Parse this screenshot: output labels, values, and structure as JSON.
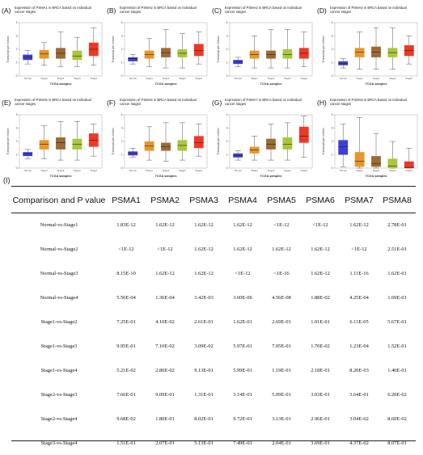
{
  "figure": {
    "panels": [
      {
        "label": "(A)",
        "title": "Expression of PSMA1 in BRCA based on individual cancer stages",
        "ylabel": "Transcript per million",
        "xlabel": "TCGA samples",
        "categories": [
          "Normal",
          "Stage1",
          "Stage2",
          "Stage3",
          "Stage4"
        ],
        "ylim": [
          0,
          4
        ],
        "boxes": [
          [
            0.9,
            1.2,
            1.4,
            1.6,
            1.9
          ],
          [
            0.8,
            1.3,
            1.65,
            1.95,
            2.5
          ],
          [
            0.7,
            1.3,
            1.7,
            2.1,
            3.3
          ],
          [
            0.7,
            1.2,
            1.5,
            1.9,
            2.9
          ],
          [
            0.8,
            1.5,
            2.0,
            2.5,
            3.6
          ]
        ]
      },
      {
        "label": "(B)",
        "title": "Expression of PSMA2 in BRCA based on individual cancer stages",
        "ylabel": "Transcript per million",
        "xlabel": "TCGA samples",
        "categories": [
          "Normal",
          "Stage1",
          "Stage2",
          "Stage3",
          "Stage4"
        ],
        "ylim": [
          0,
          4
        ],
        "boxes": [
          [
            0.9,
            1.1,
            1.3,
            1.4,
            1.6
          ],
          [
            0.7,
            1.3,
            1.6,
            1.9,
            2.8
          ],
          [
            0.6,
            1.4,
            1.75,
            2.1,
            3.5
          ],
          [
            0.6,
            1.4,
            1.7,
            2.0,
            3.2
          ],
          [
            0.9,
            1.5,
            1.9,
            2.4,
            3.3
          ]
        ]
      },
      {
        "label": "(C)",
        "title": "Expression of PSMA3 in BRCA based on individual cancer stages",
        "ylabel": "Transcript per million",
        "xlabel": "TCGA samples",
        "categories": [
          "Normal",
          "Stage1",
          "Stage2",
          "Stage3",
          "Stage4"
        ],
        "ylim": [
          0,
          4
        ],
        "boxes": [
          [
            0.7,
            0.9,
            1.05,
            1.2,
            1.4
          ],
          [
            0.6,
            1.3,
            1.6,
            1.9,
            3.0
          ],
          [
            0.6,
            1.3,
            1.6,
            1.9,
            3.5
          ],
          [
            0.6,
            1.3,
            1.6,
            2.0,
            3.5
          ],
          [
            0.7,
            1.3,
            1.7,
            2.1,
            3.3
          ]
        ]
      },
      {
        "label": "(D)",
        "title": "Expression of PSMA4 in BRCA based on individual cancer stages",
        "ylabel": "Transcript per million",
        "xlabel": "TCGA samples",
        "categories": [
          "Normal",
          "Stage1",
          "Stage2",
          "Stage3",
          "Stage4"
        ],
        "ylim": [
          0,
          4
        ],
        "boxes": [
          [
            0.6,
            0.8,
            0.95,
            1.1,
            1.3
          ],
          [
            0.5,
            1.4,
            1.8,
            2.1,
            3.3
          ],
          [
            0.5,
            1.4,
            1.8,
            2.2,
            3.6
          ],
          [
            0.5,
            1.4,
            1.75,
            2.1,
            3.6
          ],
          [
            0.9,
            1.5,
            1.9,
            2.3,
            3.0
          ]
        ]
      },
      {
        "label": "(E)",
        "title": "Expression of PSMA5 in BRCA based on individual cancer stages",
        "ylabel": "Transcript per million",
        "xlabel": "TCGA samples",
        "categories": [
          "Normal",
          "Stage1",
          "Stage2",
          "Stage3",
          "Stage4"
        ],
        "ylim": [
          0,
          4
        ],
        "boxes": [
          [
            0.7,
            0.9,
            1.05,
            1.2,
            1.4
          ],
          [
            0.7,
            1.4,
            1.8,
            2.1,
            3.2
          ],
          [
            0.6,
            1.4,
            1.9,
            2.3,
            3.5
          ],
          [
            0.6,
            1.4,
            1.8,
            2.2,
            3.5
          ],
          [
            0.9,
            1.6,
            2.1,
            2.6,
            3.3
          ]
        ]
      },
      {
        "label": "(F)",
        "title": "Expression of PSMA6 in BRCA based on individual cancer stages",
        "ylabel": "Transcript per million",
        "xlabel": "TCGA samples",
        "categories": [
          "Normal",
          "Stage1",
          "Stage2",
          "Stage3",
          "Stage4"
        ],
        "ylim": [
          0,
          4
        ],
        "boxes": [
          [
            0.8,
            0.95,
            1.1,
            1.25,
            1.5
          ],
          [
            0.6,
            1.3,
            1.65,
            2.0,
            3.1
          ],
          [
            0.5,
            1.3,
            1.6,
            1.9,
            3.4
          ],
          [
            0.6,
            1.3,
            1.7,
            2.1,
            3.4
          ],
          [
            0.9,
            1.5,
            1.9,
            2.4,
            3.3
          ]
        ]
      },
      {
        "label": "(G)",
        "title": "Expression of PSMA7 in BRCA based on individual cancer stages",
        "ylabel": "Transcript per million",
        "xlabel": "TCGA samples",
        "categories": [
          "Normal",
          "Stage1",
          "Stage2",
          "Stage3",
          "Stage4"
        ],
        "ylim": [
          0,
          4
        ],
        "boxes": [
          [
            0.6,
            0.8,
            0.95,
            1.1,
            1.3
          ],
          [
            0.6,
            1.1,
            1.35,
            1.6,
            2.4
          ],
          [
            0.6,
            1.4,
            1.8,
            2.2,
            3.3
          ],
          [
            0.6,
            1.4,
            1.8,
            2.3,
            3.4
          ],
          [
            0.8,
            1.9,
            2.4,
            3.1,
            3.9
          ]
        ]
      },
      {
        "label": "(H)",
        "title": "Expression of PSMA8 in BRCA based on individual cancer stages",
        "ylabel": "Transcript per million",
        "xlabel": "TCGA samples",
        "categories": [
          "Normal",
          "Stage1",
          "Stage2",
          "Stage3",
          "Stage4"
        ],
        "ylim": [
          0,
          4
        ],
        "boxes": [
          [
            0.1,
            1.0,
            1.6,
            2.1,
            3.3
          ],
          [
            0,
            0.1,
            0.5,
            1.2,
            3.8
          ],
          [
            0,
            0.1,
            0.35,
            0.9,
            2.6
          ],
          [
            0,
            0,
            0.15,
            0.7,
            2.0
          ],
          [
            0,
            0,
            0.05,
            0.5,
            1.5
          ]
        ]
      }
    ],
    "colors": {
      "normal": "#3f3fd6",
      "stage1": "#e8962a",
      "stage2": "#9c6a33",
      "stage3": "#a8c83a",
      "stage4": "#ee3824",
      "median": "#222222",
      "whisker": "#555555"
    }
  },
  "table": {
    "label": "(I)",
    "headers": [
      "Comparison and P value",
      "PSMA1",
      "PSMA2",
      "PSMA3",
      "PSMA4",
      "PSMA5",
      "PSMA6",
      "PSMA7",
      "PSMA8"
    ],
    "rows": [
      [
        "Normal-vs-Stage1",
        "1.83E-12",
        "1.62E-12",
        "1.62E-12",
        "1.62E-12",
        "<1E-12",
        "<1E-12",
        "1.62E-12",
        "2.78E-01"
      ],
      [
        "Normal-vs-Stage2",
        "<1E-12",
        "<1E-12",
        "1.62E-12",
        "1.62E-12",
        "1.62E-12",
        "1.62E-12",
        "<1E-12",
        "2.51E-01"
      ],
      [
        "Normal-vs-Stage3",
        "8.15E-10",
        "1.62E-12",
        "1.62E-12",
        "<1E-12",
        "<1E-16",
        "1.62E-12",
        "1.11E-16",
        "1.62E-01"
      ],
      [
        "Normal-vs-Stage4",
        "5.56E-04",
        "1.36E-04",
        "3.42E-03",
        "3.60E-06",
        "4.56E-08",
        "1.88E-02",
        "4.25E-04",
        "1.69E-01"
      ],
      [
        "Stage1-vs-Stage2",
        "7.25E-01",
        "4.10E-02",
        "2.61E-01",
        "1.62E-01",
        "2.69E-01",
        "1.01E-01",
        "6.11E-05",
        "5.67E-01"
      ],
      [
        "Stage1-vs-Stage3",
        "9.95E-01",
        "7.10E-02",
        "3.09E-02",
        "5.97E-01",
        "7.05E-01",
        "1.70E-02",
        "1.23E-04",
        "1.52E-01"
      ],
      [
        "Stage1-vs-Stage4",
        "5.21E-02",
        "2.80E-02",
        "9.13E-01",
        "5.99E-01",
        "1.19E-01",
        "2.18E-01",
        "8.20E-03",
        "1.40E-01"
      ],
      [
        "Stage2-vs-Stage3",
        "7.66E-01",
        "9.09E-01",
        "1.31E-01",
        "3.14E-01",
        "5.09E-01",
        "3.03E-01",
        "3.64E-01",
        "6.20E-02"
      ],
      [
        "Stage2-vs-Stage4",
        "9.68E-02",
        "1.80E-01",
        "8.02E-01",
        "9.72E-01",
        "3.13E-01",
        "2.96E-01",
        "3.04E-02",
        "8.60E-02"
      ],
      [
        "Stage3-vs-Stage4",
        "1.51E-01",
        "2.07E-01",
        "5.13E-01",
        "7.49E-01",
        "2.04E-01",
        "3.69E-01",
        "4.37E-02",
        "8.07E-01"
      ]
    ]
  }
}
